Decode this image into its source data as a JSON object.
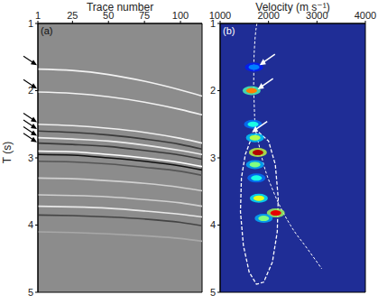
{
  "chart_data": [
    {
      "type": "line",
      "panel": "(a)",
      "xlabel": "Trace number",
      "ylabel": "T (s)",
      "color": "#8c8c8c",
      "xlim": [
        1,
        115
      ],
      "xticks": [
        1,
        25,
        50,
        75,
        100
      ],
      "ylim": [
        1,
        5
      ],
      "yticks": [
        1,
        2,
        3,
        4,
        5
      ],
      "x": [
        1,
        25,
        50,
        75,
        100,
        115
      ],
      "series": [
        {
          "color": "#f2f2f2",
          "values": [
            1.68,
            1.7,
            1.76,
            1.86,
            1.99,
            2.08
          ]
        },
        {
          "color": "#f2f2f2",
          "values": [
            2.02,
            2.04,
            2.09,
            2.17,
            2.28,
            2.36
          ]
        },
        {
          "color": "#f0f0f0",
          "values": [
            2.5,
            2.52,
            2.56,
            2.62,
            2.71,
            2.78
          ]
        },
        {
          "color": "#3a3a3a",
          "values": [
            2.6,
            2.62,
            2.66,
            2.72,
            2.8,
            2.87
          ]
        },
        {
          "color": "#eeeeee",
          "values": [
            2.7,
            2.72,
            2.75,
            2.81,
            2.89,
            2.95
          ]
        },
        {
          "color": "#3a3a3a",
          "values": [
            2.78,
            2.8,
            2.83,
            2.89,
            2.96,
            3.02
          ]
        },
        {
          "color": "#ffffff",
          "values": [
            2.9,
            2.91,
            2.95,
            3.0,
            3.07,
            3.13
          ]
        },
        {
          "color": "#111111",
          "values": [
            2.95,
            2.96,
            3.0,
            3.05,
            3.12,
            3.18
          ]
        },
        {
          "color": "#555555",
          "values": [
            3.05,
            3.06,
            3.09,
            3.14,
            3.2,
            3.26
          ]
        },
        {
          "color": "#d0d0d0",
          "values": [
            3.3,
            3.31,
            3.34,
            3.38,
            3.44,
            3.49
          ]
        },
        {
          "color": "#d0d0d0",
          "values": [
            3.55,
            3.56,
            3.58,
            3.62,
            3.67,
            3.72
          ]
        },
        {
          "color": "#e8e8e8",
          "values": [
            3.72,
            3.73,
            3.75,
            3.79,
            3.84,
            3.88
          ]
        },
        {
          "color": "#444444",
          "values": [
            3.85,
            3.86,
            3.88,
            3.91,
            3.96,
            4.01
          ]
        },
        {
          "color": "#a8a8a8",
          "values": [
            4.1,
            4.11,
            4.13,
            4.16,
            4.2,
            4.24
          ]
        }
      ],
      "arrows": [
        1.62,
        1.97,
        2.47,
        2.57,
        2.67,
        2.77
      ]
    },
    {
      "type": "heatmap",
      "panel": "(b)",
      "xlabel": "Velocity (m s⁻¹)",
      "color": "#1f2d96",
      "xlim": [
        1000,
        4000
      ],
      "xticks": [
        1000,
        2000,
        3000,
        4000
      ],
      "ylim": [
        1,
        5
      ],
      "yticks": [
        1,
        2,
        3,
        4,
        5
      ],
      "cells": {
        "x": [
          1700,
          1650,
          1680,
          1720,
          1780,
          1720,
          1750,
          1800,
          2150,
          1900
        ],
        "y": [
          1.65,
          2.0,
          2.5,
          2.7,
          2.92,
          3.1,
          3.3,
          3.6,
          3.82,
          3.9
        ],
        "values": [
          0.25,
          0.75,
          0.4,
          0.55,
          0.95,
          0.5,
          0.4,
          0.6,
          0.9,
          0.5
        ]
      },
      "trend": {
        "x": [
          1760,
          1700,
          1690,
          1720,
          1800,
          1900,
          2100,
          2450,
          2800,
          3100
        ],
        "y": [
          1.0,
          1.5,
          2.0,
          2.5,
          2.8,
          3.1,
          3.5,
          4.0,
          4.35,
          4.65
        ]
      },
      "ellipse": {
        "x": [
          1800,
          2000,
          2140,
          2200,
          2180,
          2080,
          1900,
          1750,
          1600,
          1480,
          1420,
          1440,
          1520,
          1650,
          1800
        ],
        "y": [
          2.62,
          2.75,
          3.1,
          3.6,
          4.1,
          4.55,
          4.85,
          4.88,
          4.7,
          4.3,
          3.8,
          3.3,
          2.95,
          2.7,
          2.62
        ]
      },
      "arrows": {
        "x": [
          1760,
          1720,
          1600
        ],
        "y": [
          1.62,
          1.98,
          2.62
        ]
      }
    }
  ]
}
